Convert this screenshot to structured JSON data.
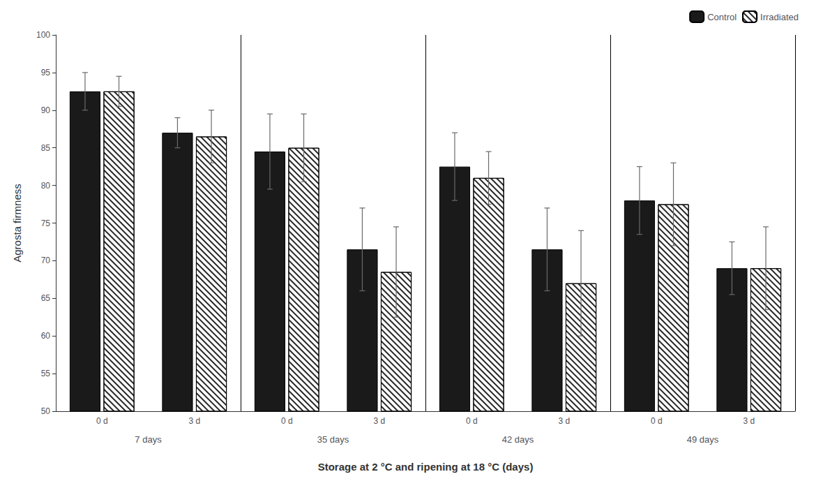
{
  "chart_data": {
    "type": "bar",
    "xlabel": "Storage at 2 °C and ripening at 18 °C (days)",
    "ylabel": "Agrosta firmness",
    "categories": [
      "0 d",
      "3 d",
      "0 d",
      "3 d",
      "0 d",
      "3 d",
      "0 d",
      "3 d"
    ],
    "groups": [
      "7 days",
      "35 days",
      "42 days",
      "49 days"
    ],
    "series": [
      {
        "name": "Control",
        "color": "#1a1a1a",
        "values": [
          92.5,
          87.0,
          84.5,
          71.5,
          82.5,
          71.5,
          78.0,
          69.0
        ],
        "errors": [
          2.5,
          2.0,
          5.0,
          5.5,
          4.5,
          5.5,
          4.5,
          3.5
        ]
      },
      {
        "name": "Irradiated",
        "color": "#ffffff",
        "values": [
          92.5,
          86.5,
          85.0,
          68.5,
          81.0,
          67.0,
          77.5,
          69.0
        ],
        "errors": [
          2.0,
          3.5,
          4.5,
          6.0,
          3.5,
          7.0,
          5.5,
          5.5
        ]
      }
    ],
    "ylim": [
      50,
      100
    ],
    "yticks": [
      50,
      55,
      60,
      65,
      70,
      75,
      80,
      85,
      90,
      95,
      100
    ],
    "grid": false,
    "legend": "upper right"
  }
}
